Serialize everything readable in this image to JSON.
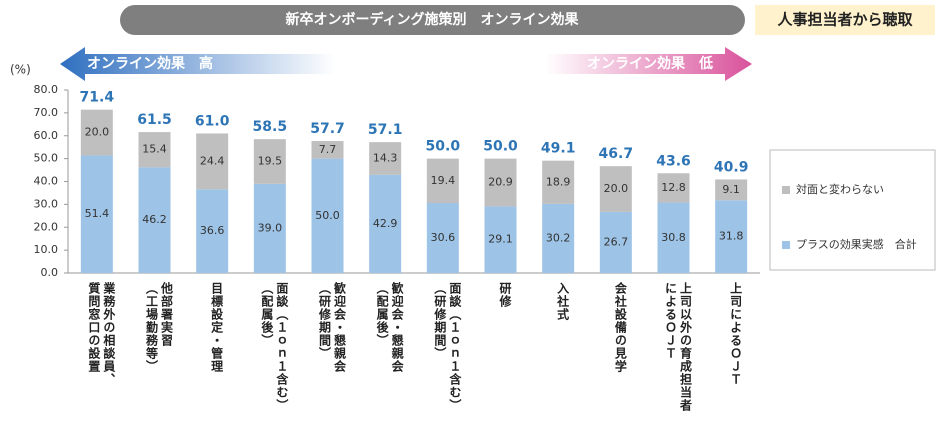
{
  "chart_data": {
    "type": "stacked_bar",
    "title": "新卒オンボーディング施策別　オンライン効果",
    "badge": "人事担当者から聴取",
    "annotations": [
      "オンライン効果　高",
      "オンライン効果　低"
    ],
    "y_unit": "(%)",
    "categories": [
      [
        "業務外の相談員、",
        "質問窓口の設置"
      ],
      [
        "他部署実習",
        "（工場勤務等）"
      ],
      [
        "目標設定・管理"
      ],
      [
        "面談（１ｏｎ１含む）",
        "（配属後）"
      ],
      [
        "歓迎会・懇親会",
        "（研修期間）"
      ],
      [
        "歓迎会・懇親会",
        "（配属後）"
      ],
      [
        "面談（１ｏｎ１含む）",
        "（研修期間）"
      ],
      [
        "研修"
      ],
      [
        "入社式"
      ],
      [
        "会社設備の見学"
      ],
      [
        "上司以外の育成担当者",
        "によるＯＪＴ"
      ],
      [
        "上司によるＯＪＴ"
      ]
    ],
    "series": [
      {
        "name": "プラスの効果実感　合計",
        "color": "#9dc3e6",
        "values": [
          51.4,
          46.2,
          36.6,
          39.0,
          50.0,
          42.9,
          30.6,
          29.1,
          30.2,
          26.7,
          30.8,
          31.8
        ],
        "value_labels": [
          "51.4",
          "46.2",
          "36.6",
          "39.0",
          "50.0",
          "42.9",
          "30.6",
          "29.1",
          "30.2",
          "26.7",
          "30.8",
          "31.8"
        ]
      },
      {
        "name": "対面と変わらない",
        "color": "#bfbfbf",
        "values": [
          20.0,
          15.4,
          24.4,
          19.5,
          7.7,
          14.3,
          19.4,
          20.9,
          18.9,
          20.0,
          12.8,
          9.1
        ],
        "value_labels": [
          "20.0",
          "15.4",
          "24.4",
          "19.5",
          "7.7",
          "14.3",
          "19.4",
          "20.9",
          "18.9",
          "20.0",
          "12.8",
          "9.1"
        ]
      }
    ],
    "totals": [
      71.4,
      61.5,
      61.0,
      58.5,
      57.7,
      57.1,
      50.0,
      50.0,
      49.1,
      46.7,
      43.6,
      40.9
    ],
    "total_labels": [
      "71.4",
      "61.5",
      "61.0",
      "58.5",
      "57.7",
      "57.1",
      "50.0",
      "50.0",
      "49.1",
      "46.7",
      "43.6",
      "40.9"
    ],
    "ylim": [
      0,
      80
    ],
    "yticks": [
      {
        "value": 0,
        "label": "0.0"
      },
      {
        "value": 10,
        "label": "10.0"
      },
      {
        "value": 20,
        "label": "20.0"
      },
      {
        "value": 30,
        "label": "30.0"
      },
      {
        "value": 40,
        "label": "40.0"
      },
      {
        "value": 50,
        "label": "50.0"
      },
      {
        "value": 60,
        "label": "60.0"
      },
      {
        "value": 70,
        "label": "70.0"
      },
      {
        "value": 80,
        "label": "80.0"
      }
    ]
  }
}
